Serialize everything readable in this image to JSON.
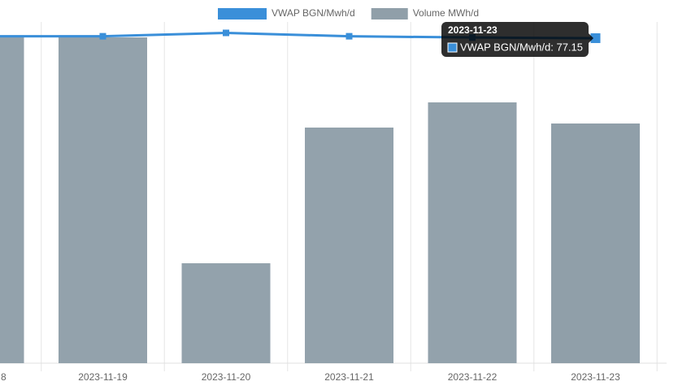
{
  "chart_data": {
    "type": "bar-line",
    "categories": [
      "8",
      "2023-11-19",
      "2023-11-20",
      "2023-11-21",
      "2023-11-22",
      "2023-11-23"
    ],
    "series": [
      {
        "name": "VWAP BGN/Mwh/d",
        "type": "line",
        "axis": "y2",
        "color": "#3a8fd9",
        "values": [
          77.6,
          77.6,
          78.4,
          77.6,
          77.3,
          77.15
        ]
      },
      {
        "name": "Volume MWh/d",
        "type": "bar",
        "color": "#909fa9",
        "values": [
          401,
          401,
          123,
          290,
          321,
          295
        ]
      }
    ],
    "ylim": [
      0,
      420
    ],
    "y2lim": [
      0,
      81
    ],
    "grid": true,
    "legend": "top",
    "tooltip": {
      "title": "2023-11-23",
      "label": "VWAP BGN/Mwh/d: 77.15",
      "index": 5
    }
  }
}
